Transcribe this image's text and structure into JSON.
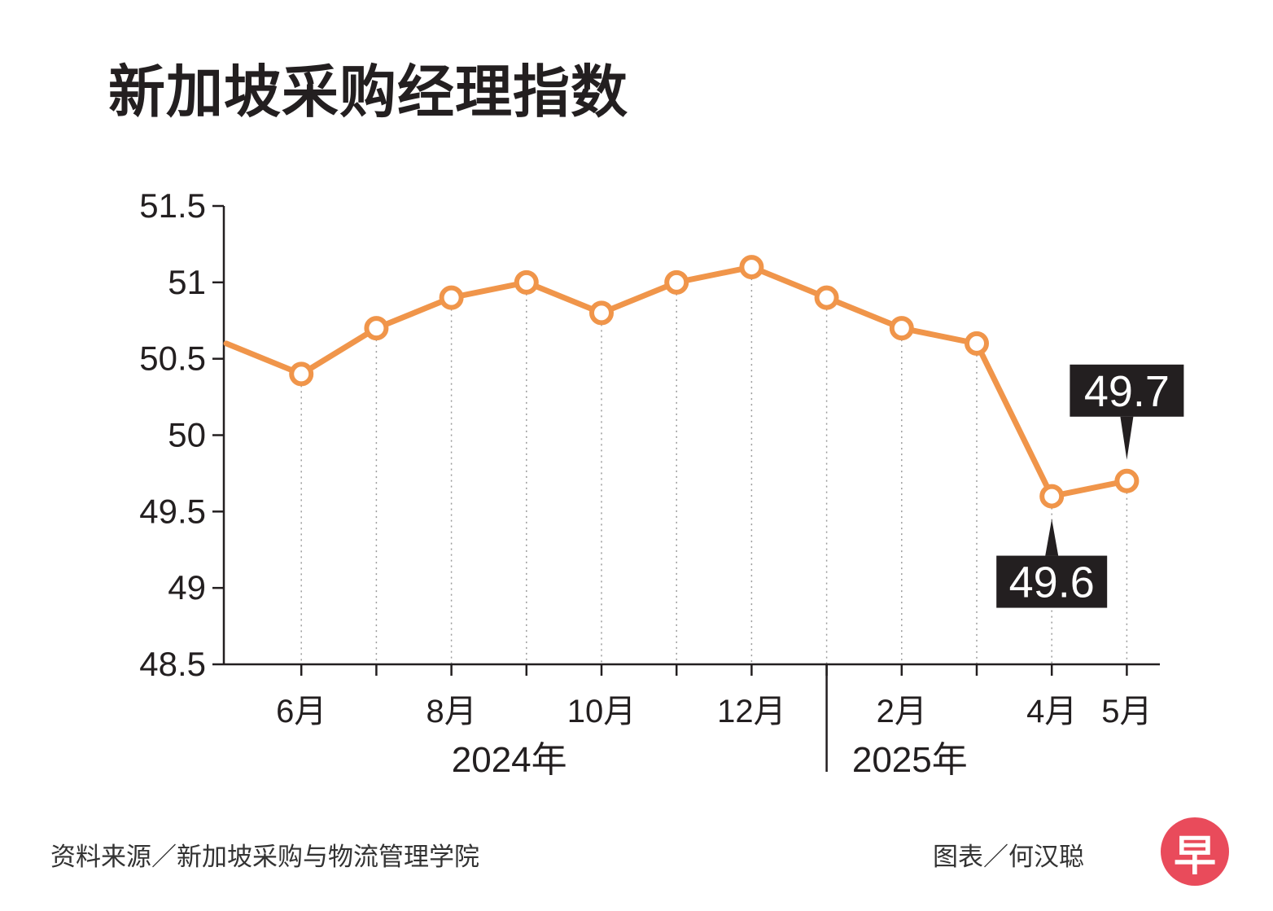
{
  "chart_data": {
    "type": "line",
    "title": "新加坡采购经理指数",
    "xlabel": "",
    "ylabel": "",
    "ylim": [
      48.5,
      51.5
    ],
    "yticks": [
      "51.5",
      "51",
      "50.5",
      "50",
      "49.5",
      "49",
      "48.5"
    ],
    "ytick_values": [
      51.5,
      51,
      50.5,
      50,
      49.5,
      49,
      48.5
    ],
    "x": [
      "2024-05",
      "2024-06",
      "2024-07",
      "2024-08",
      "2024-09",
      "2024-10",
      "2024-11",
      "2024-12",
      "2025-01",
      "2025-02",
      "2025-03",
      "2025-04",
      "2025-05"
    ],
    "xtick_labels": [
      "",
      "6月",
      "",
      "8月",
      "",
      "10月",
      "",
      "12月",
      "",
      "2月",
      "",
      "4月",
      "5月"
    ],
    "year_labels": [
      "2024年",
      "2025年"
    ],
    "series": [
      {
        "values": [
          50.6,
          50.4,
          50.7,
          50.9,
          51.0,
          50.8,
          51.0,
          51.1,
          50.9,
          50.7,
          50.6,
          49.6,
          49.7
        ],
        "color": "#f0954a"
      }
    ],
    "annotations": [
      {
        "x": "2025-04",
        "text": "49.6",
        "position": "below"
      },
      {
        "x": "2025-05",
        "text": "49.7",
        "position": "above"
      }
    ],
    "grid": "dotted vertical lines at each month",
    "legend": "none"
  },
  "footer": {
    "source": "资料来源／新加坡采购与物流管理学院",
    "credit": "图表／何汉聪",
    "logo_char": "早",
    "logo_color": "#e94b5b"
  }
}
